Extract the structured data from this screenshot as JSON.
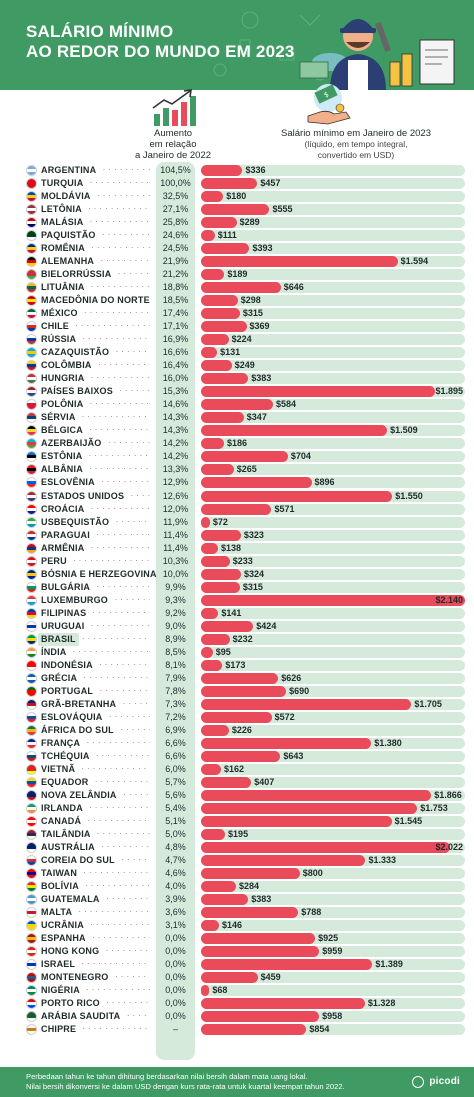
{
  "title_line1": "SALÁRIO MÍNIMO",
  "title_line2": "AO REDOR DO MUNDO EM 2023",
  "col_increase_line1": "Aumento",
  "col_increase_line2": "em relação",
  "col_increase_line3": "a Janeiro de 2022",
  "col_wage_title": "Salário mínimo em Janeiro de 2023",
  "col_wage_sub1": "(líquido, em tempo integral,",
  "col_wage_sub2": "convertido em USD)",
  "footer_line1": "Perbedaan tahun ke tahun dihitung berdasarkan nilai bersih dalam mata uang lokal.",
  "footer_line2": "Nilai bersih dikonversi ke dalam USD dengan kurs rata-rata untuk kuartal keempat tahun 2022.",
  "brand": "picodi",
  "colors": {
    "green": "#3f9b63",
    "light_green": "#d6eadb",
    "bar_red": "#e94b5a"
  },
  "chart_data": {
    "type": "bar",
    "orientation": "horizontal",
    "xlim": [
      0,
      2140
    ],
    "categories": [
      "ARGENTINA",
      "TURQUIA",
      "MOLDÁVIA",
      "LETÔNIA",
      "MALÁSIA",
      "PAQUISTÃO",
      "ROMÊNIA",
      "ALEMANHA",
      "BIELORRÚSSIA",
      "LITUÂNIA",
      "MACEDÔNIA DO NORTE",
      "MÉXICO",
      "CHILE",
      "RÚSSIA",
      "CAZAQUISTÃO",
      "COLÔMBIA",
      "HUNGRIA",
      "PAÍSES BAIXOS",
      "POLÔNIA",
      "SÉRVIA",
      "BÉLGICA",
      "AZERBAIJÃO",
      "ESTÔNIA",
      "ALBÂNIA",
      "ESLOVÊNIA",
      "ESTADOS UNIDOS",
      "CROÁCIA",
      "USBEQUISTÃO",
      "PARAGUAI",
      "ARMÊNIA",
      "PERU",
      "BÓSNIA E HERZEGOVINA",
      "BULGÁRIA",
      "LUXEMBURGO",
      "FILIPINAS",
      "URUGUAI",
      "BRASIL",
      "ÍNDIA",
      "INDONÉSIA",
      "GRÉCIA",
      "PORTUGAL",
      "GRÃ-BRETANHA",
      "ESLOVÁQUIA",
      "ÁFRICA DO SUL",
      "FRANÇA",
      "TCHÉQUIA",
      "VIETNÃ",
      "EQUADOR",
      "NOVA ZELÂNDIA",
      "IRLANDA",
      "CANADÁ",
      "TAILÂNDIA",
      "AUSTRÁLIA",
      "COREIA DO SUL",
      "TAIWAN",
      "BOLÍVIA",
      "GUATEMALA",
      "MALTA",
      "UCRÂNIA",
      "ESPANHA",
      "HONG KONG",
      "ISRAEL",
      "MONTENEGRO",
      "NIGÉRIA",
      "PORTO RICO",
      "ARÁBIA SAUDITA",
      "CHIPRE"
    ],
    "increase_labels": [
      "104,5%",
      "100,0%",
      "32,5%",
      "27,1%",
      "25,8%",
      "24,6%",
      "24,5%",
      "21,9%",
      "21,2%",
      "18,8%",
      "18,5%",
      "17,4%",
      "17,1%",
      "16,9%",
      "16,6%",
      "16,4%",
      "16,0%",
      "15,3%",
      "14,6%",
      "14,3%",
      "14,3%",
      "14,2%",
      "14,2%",
      "13,3%",
      "12,9%",
      "12,6%",
      "12,0%",
      "11,9%",
      "11,4%",
      "11,4%",
      "10,3%",
      "10,0%",
      "9,9%",
      "9,3%",
      "9,2%",
      "9,0%",
      "8,9%",
      "8,5%",
      "8,1%",
      "7,9%",
      "7,8%",
      "7,3%",
      "7,2%",
      "6,9%",
      "6,6%",
      "6,6%",
      "6,0%",
      "5,7%",
      "5,6%",
      "5,4%",
      "5,1%",
      "5,0%",
      "4,8%",
      "4,7%",
      "4,6%",
      "4,0%",
      "3,9%",
      "3,6%",
      "3,1%",
      "0,0%",
      "0,0%",
      "0,0%",
      "0,0%",
      "0,0%",
      "0,0%",
      "0,0%",
      "–"
    ],
    "values": [
      336,
      457,
      180,
      555,
      289,
      111,
      393,
      1594,
      189,
      646,
      298,
      315,
      369,
      224,
      131,
      249,
      383,
      1895,
      584,
      347,
      1509,
      186,
      704,
      265,
      896,
      1550,
      571,
      72,
      323,
      138,
      233,
      324,
      315,
      2140,
      141,
      424,
      232,
      95,
      173,
      626,
      690,
      1705,
      572,
      226,
      1380,
      643,
      162,
      407,
      1866,
      1753,
      1545,
      195,
      2022,
      1333,
      800,
      284,
      383,
      788,
      146,
      925,
      959,
      1389,
      459,
      68,
      1328,
      958,
      854
    ],
    "value_labels": [
      "$336",
      "$457",
      "$180",
      "$555",
      "$289",
      "$111",
      "$393",
      "$1.594",
      "$189",
      "$646",
      "$298",
      "$315",
      "$369",
      "$224",
      "$131",
      "$249",
      "$383",
      "$1.895",
      "$584",
      "$347",
      "$1.509",
      "$186",
      "$704",
      "$265",
      "$896",
      "$1.550",
      "$571",
      "$72",
      "$323",
      "$138",
      "$233",
      "$324",
      "$315",
      "$2.140",
      "$141",
      "$424",
      "$232",
      "$95",
      "$173",
      "$626",
      "$690",
      "$1.705",
      "$572",
      "$226",
      "$1.380",
      "$643",
      "$162",
      "$407",
      "$1.866",
      "$1.753",
      "$1.545",
      "$195",
      "$2.022",
      "$1.333",
      "$800",
      "$284",
      "$383",
      "$788",
      "$146",
      "$925",
      "$959",
      "$1.389",
      "$459",
      "$68",
      "$1.328",
      "$958",
      "$854"
    ],
    "highlight": "BRASIL"
  },
  "flags": [
    "#74acdf|#fff|#74acdf",
    "#e30a17|#e30a17|#e30a17",
    "#0046ae|#ffd200|#cc092f",
    "#9e3039|#fff|#9e3039",
    "#cc0001|#fff|#010066",
    "#01411c|#01411c|#fff",
    "#002b7f|#fcd116|#ce1126",
    "#000|#dd0000|#ffce00",
    "#c8313e|#c8313e|#4aa657",
    "#fdb913|#006a44|#c1272d",
    "#d20000|#ffe600|#d20000",
    "#006847|#fff|#ce1126",
    "#fff|#d52b1e|#0039a6",
    "#fff|#0039a6|#d52b1e",
    "#00afca|#fec50c|#00afca",
    "#fcd116|#003893|#ce1126",
    "#ce2939|#fff|#477050",
    "#ae1c28|#fff|#21468b",
    "#fff|#dc143c|#dc143c",
    "#c6363c|#0c4076|#fff",
    "#000|#fdda24|#ef3340",
    "#00b5e2|#ef3340|#509e2f",
    "#0072ce|#000|#fff",
    "#e41e20|#000|#e41e20",
    "#fff|#005ce5|#ed1c24",
    "#b22234|#fff|#3c3b6e",
    "#ff0000|#fff|#171796",
    "#1eb53a|#fff|#0099b5",
    "#d52b1e|#fff|#0038a8",
    "#d90012|#0033a0|#f2a800",
    "#d91023|#fff|#d91023",
    "#002395|#fecb00|#002395",
    "#fff|#00966e|#d62612",
    "#ef3340|#fff|#00a3e0",
    "#0038a8|#ce1126|#fcd116",
    "#fff|#0038a8|#fff",
    "#009c3b|#ffdf00|#002776",
    "#ff9933|#fff|#138808",
    "#ff0000|#ff0000|#fff",
    "#0d5eaf|#fff|#0d5eaf",
    "#006600|#ff0000|#ff0000",
    "#012169|#c8102e|#fff",
    "#fff|#0b4ea2|#ee1c25",
    "#007a4d|#ffb612|#de3831",
    "#002395|#fff|#ed2939",
    "#fff|#11457e|#d7141a",
    "#da251d|#da251d|#ffff00",
    "#ffdd00|#034ea2|#ed1c24",
    "#012169|#012169|#c8102e",
    "#169b62|#fff|#ff883e",
    "#ff0000|#fff|#ff0000",
    "#a51931|#2d2a4a|#f4f5f8",
    "#012169|#012169|#fff",
    "#fff|#cd2e3a|#0047a0",
    "#fe0000|#000095|#fe0000",
    "#d52b1e|#f9e300|#007934",
    "#4997d0|#fff|#4997d0",
    "#fff|#cf142b|#fff",
    "#0057b7|#ffd700|#ffd700",
    "#aa151b|#f1bf00|#aa151b",
    "#de2910|#fff|#de2910",
    "#fff|#0038b8|#fff",
    "#c40308|#1d5e91|#c40308",
    "#008751|#fff|#008751",
    "#ed0000|#fff|#0050f0",
    "#165d31|#165d31|#fff",
    "#fff|#d57800|#fff"
  ]
}
